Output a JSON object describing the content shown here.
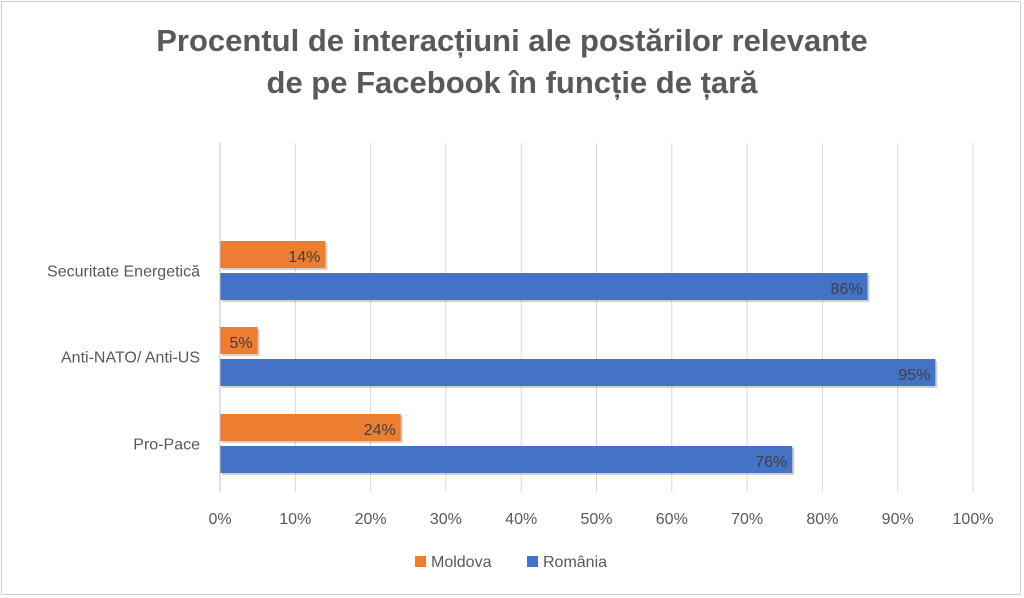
{
  "chart_data": {
    "type": "bar",
    "orientation": "horizontal",
    "title_lines": [
      "Procentul de interacțiuni ale postărilor relevante",
      "de pe Facebook în funcție de țară"
    ],
    "categories": [
      "Securitate Energetică",
      "Anti-NATO/ Anti-US",
      "Pro-Pace"
    ],
    "series": [
      {
        "name": "Moldova",
        "color": "#ED7D31",
        "values": [
          14,
          5,
          24
        ],
        "labels": [
          "14%",
          "5%",
          "24%"
        ]
      },
      {
        "name": "România",
        "color": "#4472C4",
        "values": [
          86,
          95,
          76
        ],
        "labels": [
          "86%",
          "95%",
          "76%"
        ]
      }
    ],
    "x_ticks": [
      "0%",
      "10%",
      "20%",
      "30%",
      "40%",
      "50%",
      "60%",
      "70%",
      "80%",
      "90%",
      "100%"
    ],
    "xlim": [
      0,
      100
    ],
    "grid": true,
    "legend_position": "bottom"
  }
}
